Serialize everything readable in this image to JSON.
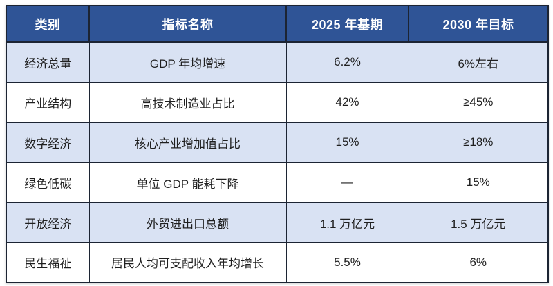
{
  "table": {
    "title": "indicator-target-table",
    "headers": [
      {
        "label": "类别"
      },
      {
        "label": "指标名称"
      },
      {
        "label": "2025 年基期"
      },
      {
        "label": "2030 年目标"
      }
    ],
    "rows": [
      {
        "category": "经济总量",
        "indicator": "GDP 年均增速",
        "base": "6.2%",
        "target": "6%左右"
      },
      {
        "category": "产业结构",
        "indicator": "高技术制造业占比",
        "base": "42%",
        "target": "≥45%"
      },
      {
        "category": "数字经济",
        "indicator": "核心产业增加值占比",
        "base": "15%",
        "target": "≥18%"
      },
      {
        "category": "绿色低碳",
        "indicator": "单位 GDP 能耗下降",
        "base": "—",
        "target": "15%"
      },
      {
        "category": "开放经济",
        "indicator": "外贸进出口总额",
        "base": "1.1 万亿元",
        "target": "1.5 万亿元"
      },
      {
        "category": "民生福祉",
        "indicator": "居民人均可支配收入年均增长",
        "base": "5.5%",
        "target": "6%"
      }
    ],
    "banded_row_indexes": [
      0,
      2,
      4
    ],
    "colors": {
      "header_bg": "#2F5496",
      "header_text": "#FFFFFF",
      "band_bg": "#D9E2F3",
      "row_bg": "#FFFFFF",
      "border": "#1C2433",
      "cell_text": "#1F1F1F"
    }
  }
}
